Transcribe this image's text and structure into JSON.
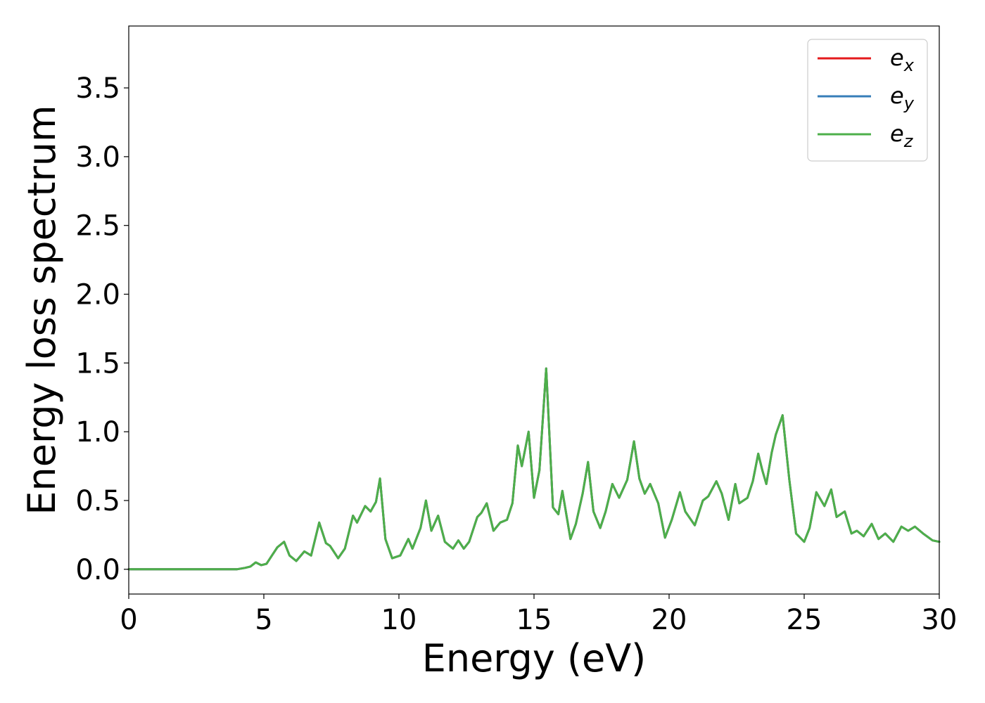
{
  "chart_data": {
    "type": "line",
    "title": "",
    "xlabel": "Energy (eV)",
    "ylabel": "Energy loss spectrum",
    "xlim": [
      0,
      30
    ],
    "ylim": [
      -0.18,
      3.95
    ],
    "xticks": [
      "0",
      "5",
      "10",
      "15",
      "20",
      "25",
      "30"
    ],
    "yticks": [
      "0.0",
      "0.5",
      "1.0",
      "1.5",
      "2.0",
      "2.5",
      "3.0",
      "3.5"
    ],
    "grid": false,
    "legend_position": "top-right",
    "colors": {
      "ex": "#e41a1c",
      "ey": "#377eb8",
      "ez": "#4daf4a"
    },
    "legend": [
      {
        "base": "e",
        "sub": "x"
      },
      {
        "base": "e",
        "sub": "y"
      },
      {
        "base": "e",
        "sub": "z"
      }
    ],
    "series_note_hidden": false,
    "series": [
      {
        "key": "ez",
        "x": [
          0,
          2,
          4,
          4.3,
          4.5,
          4.7,
          4.9,
          5.1,
          5.3,
          5.5,
          5.75,
          5.95,
          6.2,
          6.5,
          6.75,
          7.05,
          7.3,
          7.45,
          7.75,
          8.0,
          8.3,
          8.45,
          8.75,
          8.95,
          9.15,
          9.3,
          9.5,
          9.75,
          10.05,
          10.35,
          10.5,
          10.8,
          11.0,
          11.2,
          11.45,
          11.7,
          12.0,
          12.2,
          12.4,
          12.6,
          12.9,
          13.05,
          13.25,
          13.5,
          13.75,
          14.0,
          14.2,
          14.4,
          14.55,
          14.8,
          15.0,
          15.2,
          15.45,
          15.7,
          15.9,
          16.05,
          16.35,
          16.55,
          16.8,
          17.0,
          17.2,
          17.45,
          17.65,
          17.9,
          18.15,
          18.45,
          18.7,
          18.9,
          19.1,
          19.3,
          19.6,
          19.85,
          20.1,
          20.4,
          20.6,
          20.95,
          21.25,
          21.45,
          21.75,
          21.95,
          22.2,
          22.45,
          22.6,
          22.9,
          23.1,
          23.3,
          23.45,
          23.6,
          23.8,
          23.95,
          24.2,
          24.45,
          24.7,
          25.0,
          25.2,
          25.45,
          25.75,
          26.0,
          26.2,
          26.5,
          26.75,
          26.95,
          27.2,
          27.5,
          27.75,
          28.0,
          28.3,
          28.6,
          28.85,
          29.1,
          29.4,
          29.75,
          30.0
        ],
        "y": [
          0.0,
          0.0,
          0.0,
          0.01,
          0.02,
          0.05,
          0.03,
          0.04,
          0.1,
          0.16,
          0.2,
          0.1,
          0.06,
          0.13,
          0.1,
          0.34,
          0.19,
          0.17,
          0.08,
          0.15,
          0.39,
          0.34,
          0.46,
          0.42,
          0.49,
          0.66,
          0.22,
          0.08,
          0.1,
          0.22,
          0.15,
          0.3,
          0.5,
          0.28,
          0.39,
          0.2,
          0.15,
          0.21,
          0.15,
          0.2,
          0.38,
          0.41,
          0.48,
          0.28,
          0.34,
          0.36,
          0.48,
          0.9,
          0.75,
          1.0,
          0.52,
          0.72,
          1.46,
          0.45,
          0.4,
          0.57,
          0.22,
          0.33,
          0.55,
          0.78,
          0.42,
          0.3,
          0.42,
          0.62,
          0.52,
          0.65,
          0.93,
          0.66,
          0.55,
          0.62,
          0.48,
          0.23,
          0.36,
          0.56,
          0.42,
          0.32,
          0.5,
          0.53,
          0.64,
          0.55,
          0.36,
          0.62,
          0.48,
          0.52,
          0.64,
          0.84,
          0.72,
          0.62,
          0.85,
          0.98,
          1.12,
          0.65,
          0.26,
          0.2,
          0.3,
          0.56,
          0.46,
          0.58,
          0.38,
          0.42,
          0.26,
          0.28,
          0.24,
          0.33,
          0.22,
          0.26,
          0.2,
          0.31,
          0.28,
          0.31,
          0.26,
          0.21,
          0.2
        ]
      }
    ]
  }
}
